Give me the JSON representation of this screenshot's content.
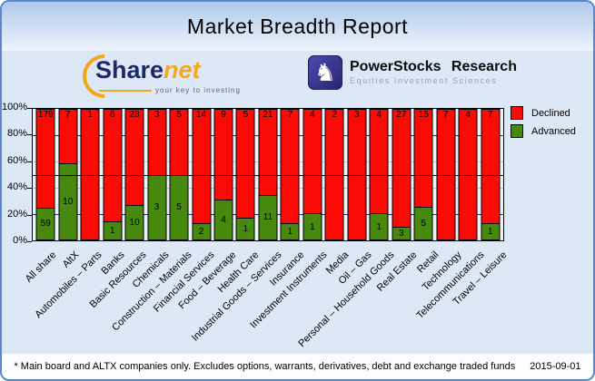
{
  "header": {
    "title": "Market Breadth Report"
  },
  "logos": {
    "sharenet": {
      "word_primary": "Share",
      "word_secondary": "net",
      "tagline": "your key to investing",
      "brand_blue": "#1c2a6b",
      "brand_orange": "#f2a71b"
    },
    "powerstocks": {
      "title": "PowerStocks Research",
      "subtitle": "Equities Investment Sciences",
      "icon": "knight-chess-icon"
    }
  },
  "chart_data": {
    "type": "bar",
    "stacked": true,
    "normalized": "percent",
    "title": "Market Breadth Report",
    "categories": [
      "All share",
      "AltX",
      "Automobiles – Parts",
      "Banks",
      "Basic Resources",
      "Chemicals",
      "Construction – Materials",
      "Financial Services",
      "Food – Beverage",
      "Health Care",
      "Industrial Goods – Services",
      "Insurance",
      "Investment Instruments",
      "Media",
      "Oil – Gas",
      "Personal – Household Goods",
      "Real Estate",
      "Retail",
      "Technology",
      "Telecommunications",
      "Travel – Leisure"
    ],
    "series": [
      {
        "name": "Declined",
        "color": "#fa0b06",
        "values": [
          179,
          7,
          1,
          6,
          28,
          3,
          5,
          14,
          9,
          5,
          21,
          7,
          4,
          2,
          3,
          4,
          27,
          15,
          7,
          4,
          7
        ]
      },
      {
        "name": "Advanced",
        "color": "#47880e",
        "values": [
          59,
          10,
          0,
          1,
          10,
          3,
          5,
          2,
          4,
          1,
          11,
          1,
          1,
          0,
          0,
          1,
          3,
          5,
          0,
          0,
          1
        ]
      }
    ],
    "ylim": [
      0,
      100
    ],
    "yticks": [
      "100%",
      "80%",
      "60%",
      "40%",
      "20%",
      "0%"
    ],
    "gridlines": {
      "navy_pct": [
        80,
        20
      ],
      "gray_pct": [
        60,
        40
      ],
      "navy_color": "#26268f",
      "gray_color": "#c3c6cc"
    },
    "reference_line_pct": 50,
    "legend_position": "right"
  },
  "footer": {
    "note": "* Main board and ALTX companies only. Excludes options, warrants, derivatives, debt and exchange traded funds",
    "date": "2015-09-01"
  }
}
